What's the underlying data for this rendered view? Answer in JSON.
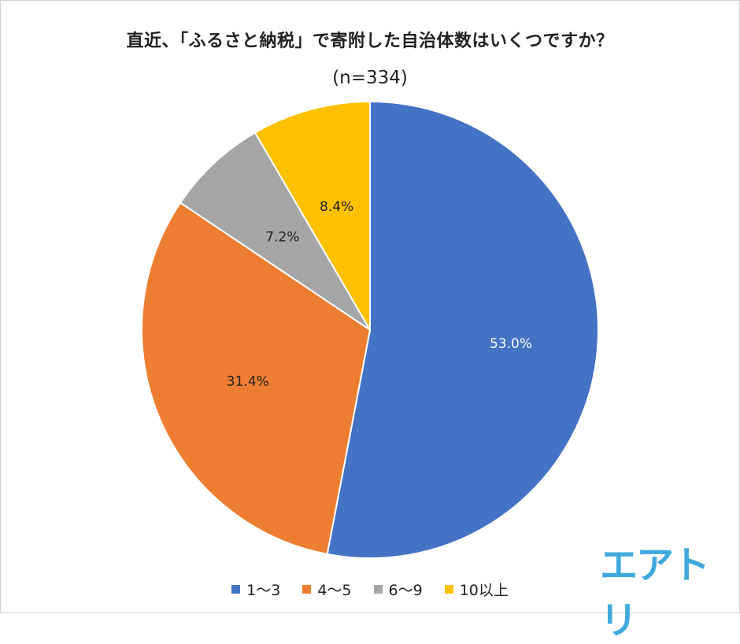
{
  "title": "直近、「ふるさと納税」で寄附した自治体数はいくつですか？",
  "subtitle": "(n=334)",
  "logo_text": "エアトリ",
  "chart_data": {
    "type": "pie",
    "title": "直近、「ふるさと納税」で寄附した自治体数はいくつですか？",
    "subtitle": "(n=334)",
    "start": "12 o'clock, clockwise",
    "legend_position": "bottom",
    "slices": [
      {
        "label": "1～3",
        "value": 53.0,
        "value_label": "53.0%",
        "color": "#4472C4",
        "label_color": "#ffffff"
      },
      {
        "label": "4～5",
        "value": 31.4,
        "value_label": "31.4%",
        "color": "#ED7D31",
        "label_color": "#222222"
      },
      {
        "label": "6～9",
        "value": 7.2,
        "value_label": "7.2%",
        "color": "#A5A5A5",
        "label_color": "#222222"
      },
      {
        "label": "10以上",
        "value": 8.4,
        "value_label": "8.4%",
        "color": "#FFC000",
        "label_color": "#222222"
      }
    ]
  }
}
